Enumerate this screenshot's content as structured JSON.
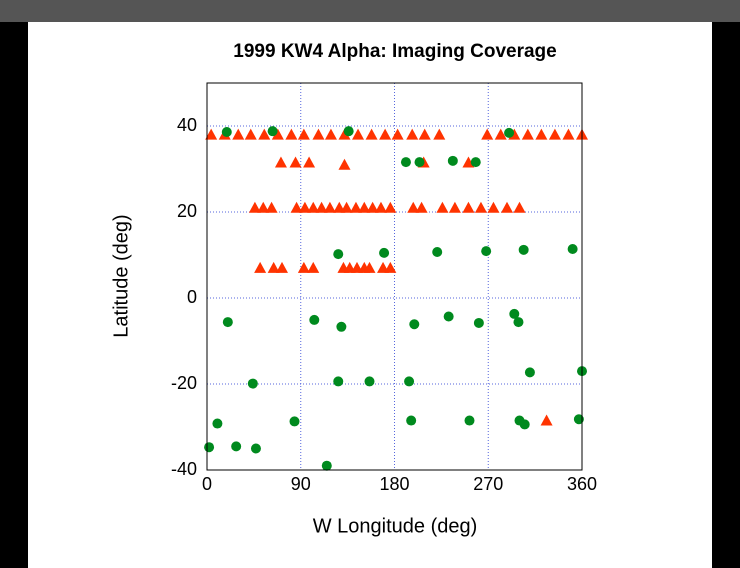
{
  "chart_data": {
    "type": "scatter",
    "title": "1999 KW4 Alpha: Imaging Coverage",
    "x_label": "W Longitude (deg)",
    "y_label": "Latitude (deg)",
    "xlim": [
      0,
      360
    ],
    "ylim": [
      -40,
      50
    ],
    "xticks": [
      0,
      90,
      180,
      270,
      360
    ],
    "yticks": [
      -40,
      -20,
      0,
      20,
      40
    ],
    "grid": true,
    "series": [
      {
        "marker": "triangle",
        "color": "#ff3300",
        "x": [
          4,
          17,
          30,
          42,
          55,
          68,
          81,
          93,
          107,
          119,
          132,
          145,
          158,
          171,
          183,
          197,
          209,
          223,
          269,
          282,
          295,
          308,
          321,
          334,
          347,
          360,
          71,
          85,
          98,
          132,
          208,
          251,
          46,
          54,
          62,
          86,
          94,
          102,
          110,
          118,
          127,
          134,
          143,
          151,
          159,
          167,
          176,
          198,
          206,
          226,
          238,
          251,
          263,
          275,
          288,
          300,
          51,
          64,
          72,
          93,
          102,
          131,
          137,
          144,
          151,
          156,
          169,
          176,
          326
        ],
        "values": [
          38,
          38,
          38,
          38,
          38,
          38,
          38,
          38,
          38,
          38,
          38,
          38,
          38,
          38,
          38,
          38,
          38,
          38,
          38,
          38,
          38,
          38,
          38,
          38,
          38,
          38,
          31.5,
          31.5,
          31.5,
          31,
          31.5,
          31.5,
          21,
          21,
          21,
          21,
          21,
          21,
          21,
          21,
          21,
          21,
          21,
          21,
          21,
          21,
          21,
          21,
          21,
          21,
          21,
          21,
          21,
          21,
          21,
          21,
          7,
          7,
          7,
          7,
          7,
          7,
          7,
          7,
          7,
          7,
          7,
          7,
          -28.5
        ]
      },
      {
        "marker": "circle",
        "color": "#008a1e",
        "x": [
          19,
          63,
          136,
          290,
          191,
          204,
          236,
          258,
          126,
          170,
          221,
          268,
          304,
          351,
          20,
          103,
          129,
          199,
          232,
          261,
          295,
          299,
          44,
          126,
          156,
          194,
          310,
          360,
          10,
          28,
          2,
          84,
          47,
          115,
          196,
          252,
          300,
          305,
          357
        ],
        "values": [
          38.6,
          38.8,
          38.8,
          38.4,
          31.6,
          31.6,
          31.9,
          31.6,
          10.2,
          10.5,
          10.7,
          10.9,
          11.2,
          11.4,
          -5.6,
          -5.1,
          -6.7,
          -6.1,
          -4.3,
          -5.8,
          -3.7,
          -5.6,
          -19.9,
          -19.4,
          -19.4,
          -19.4,
          -17.3,
          -17,
          -29.2,
          -34.5,
          -34.7,
          -28.7,
          -35,
          -39,
          -28.5,
          -28.5,
          -28.5,
          -29.4,
          -28.2
        ]
      }
    ]
  }
}
